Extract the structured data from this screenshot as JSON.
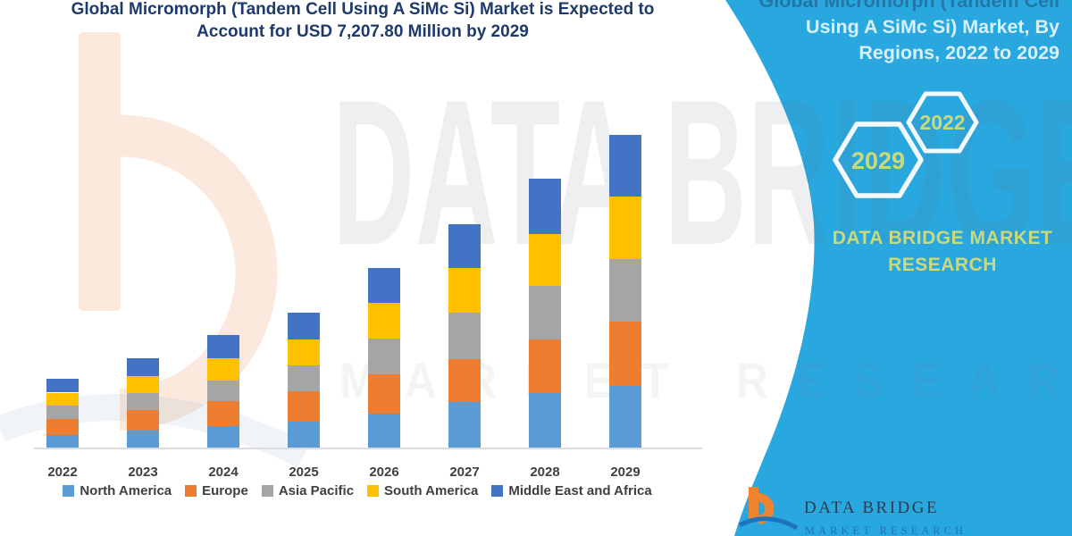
{
  "title": {
    "line1": "Global Micromorph (Tandem Cell Using A SiMc Si) Market is Expected to",
    "line2": "Account for USD 7,207.80 Million by 2029"
  },
  "side_panel": {
    "heading_line1": "Global Micromorph (Tandem Cell",
    "heading_line2": "Using A SiMc Si) Market, By",
    "heading_line3": "Regions, 2022 to 2029",
    "hexagon_back": "2029",
    "hexagon_front": "2022",
    "brand_line1": "DATA BRIDGE MARKET",
    "brand_line2": "RESEARCH",
    "panel_color": "#29a8e0",
    "accent_text_color": "#cbd97b"
  },
  "watermark": {
    "line1": "DATA BRIDGE",
    "line2": "MARKET RESEARCH"
  },
  "footer_logo": {
    "name": "DATA BRIDGE",
    "subtitle": "MARKET RESEARCH",
    "orange": "#f0832d",
    "blue": "#1e73be"
  },
  "chart_data": {
    "type": "bar",
    "stacked": true,
    "title": "Global Micromorph (Tandem Cell Using A SiMc Si) Market, By Regions, 2022 to 2029",
    "unit": "USD Million",
    "anchor_total_2029": 7207.8,
    "values_are_estimates_from_bar_heights": true,
    "categories": [
      "2022",
      "2023",
      "2024",
      "2025",
      "2026",
      "2027",
      "2028",
      "2029"
    ],
    "series": [
      {
        "name": "North America",
        "color": "#5B9BD5",
        "values": [
          295,
          395,
          500,
          600,
          790,
          1050,
          1255,
          1410
        ]
      },
      {
        "name": "Europe",
        "color": "#ED7D31",
        "values": [
          370,
          480,
          565,
          690,
          895,
          985,
          1235,
          1495
        ]
      },
      {
        "name": "Asia Pacific",
        "color": "#A5A5A5",
        "values": [
          300,
          380,
          480,
          600,
          825,
          1075,
          1235,
          1440
        ]
      },
      {
        "name": "South America",
        "color": "#FFC000",
        "values": [
          300,
          400,
          510,
          605,
          825,
          1030,
          1200,
          1440
        ]
      },
      {
        "name": "Middle East and Africa",
        "color": "#4472C4",
        "values": [
          315,
          400,
          540,
          605,
          790,
          1010,
          1270,
          1423
        ]
      }
    ],
    "totals": [
      1580,
      2055,
      2595,
      3100,
      4125,
      5150,
      6195,
      7208
    ],
    "ylim": [
      0,
      7400
    ],
    "grid": false,
    "legend_position": "bottom",
    "x_axis_line": true
  }
}
